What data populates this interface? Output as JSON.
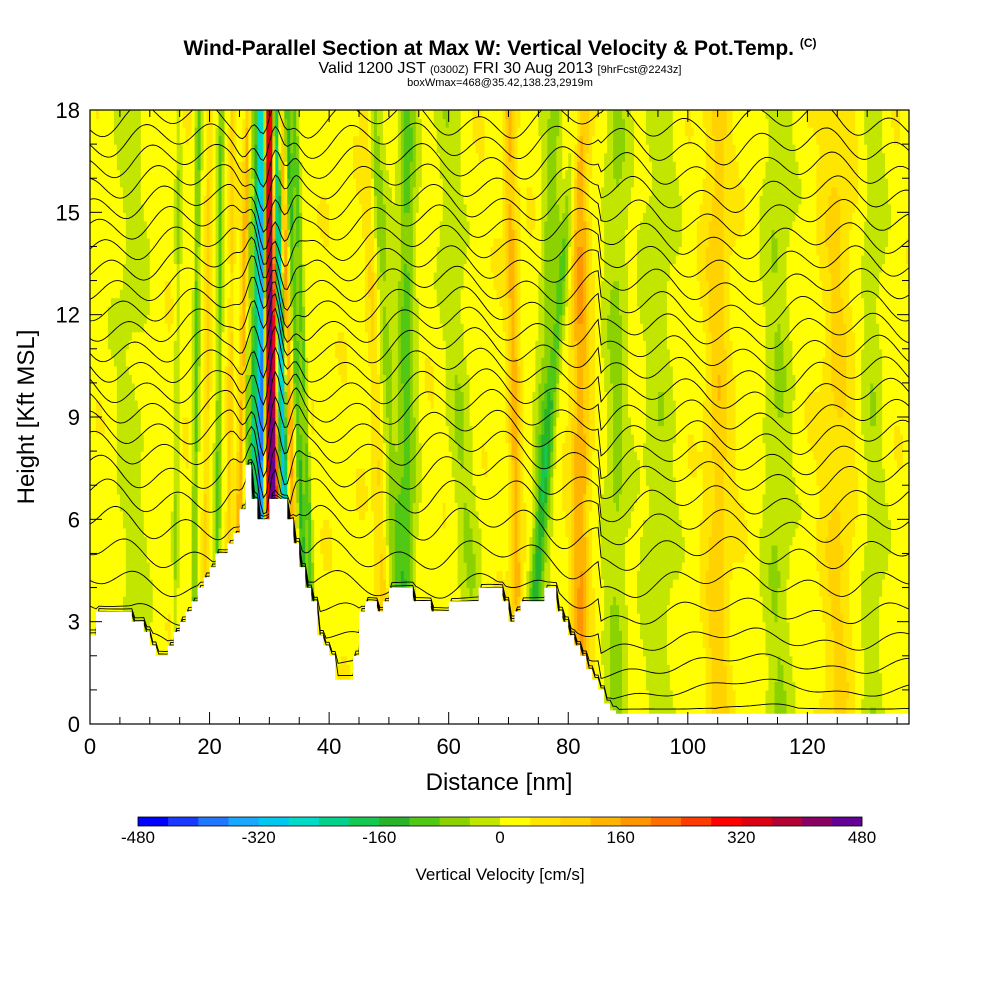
{
  "title": {
    "main": "Wind-Parallel Section at Max W: Vertical Velocity & Pot.Temp.",
    "main_tag": "(C)",
    "valid_prefix": "Valid 1200 JST ",
    "valid_utc": "(0300Z)",
    "valid_suffix": " FRI 30 Aug 2013 ",
    "forecast_tag": "[9hrFcst@2243z]",
    "box_info": "boxWmax=468@35.42,138.23,2919m"
  },
  "chart_data": {
    "type": "heatmap",
    "xlabel": "Distance [nm]",
    "ylabel": "Height [Kft MSL]",
    "xlim": [
      0,
      137
    ],
    "ylim": [
      0,
      18
    ],
    "x_ticks": [
      "0",
      "20",
      "40",
      "60",
      "80",
      "100",
      "120"
    ],
    "y_ticks": [
      "0",
      "3",
      "6",
      "9",
      "12",
      "15",
      "18"
    ],
    "colorbar": {
      "label": "Vertical Velocity [cm/s]",
      "range": [
        -480,
        480
      ],
      "tick_labels": [
        "-480",
        "-320",
        "-160",
        "0",
        "160",
        "320",
        "480"
      ],
      "colors": [
        "#0000ff",
        "#1a3bff",
        "#1f78ff",
        "#1aa8ff",
        "#00c8f0",
        "#00dcc8",
        "#00d28c",
        "#14c850",
        "#28b428",
        "#50c814",
        "#8cd200",
        "#c3e600",
        "#ffff00",
        "#ffe600",
        "#ffd200",
        "#ffb400",
        "#ff9600",
        "#ff6e00",
        "#ff3c00",
        "#ff0000",
        "#dc0014",
        "#b40032",
        "#8c0064",
        "#640096"
      ]
    },
    "terrain_nm_kft": [
      [
        0,
        2.6
      ],
      [
        1,
        3.3
      ],
      [
        6,
        3.3
      ],
      [
        7,
        3.0
      ],
      [
        9,
        2.7
      ],
      [
        10,
        2.3
      ],
      [
        11,
        2.0
      ],
      [
        13,
        2.3
      ],
      [
        14,
        2.7
      ],
      [
        15,
        3.0
      ],
      [
        16,
        3.3
      ],
      [
        17,
        3.6
      ],
      [
        18,
        4.0
      ],
      [
        19,
        4.3
      ],
      [
        20,
        4.6
      ],
      [
        21,
        5.0
      ],
      [
        22,
        5.0
      ],
      [
        23,
        5.3
      ],
      [
        24,
        5.6
      ],
      [
        25,
        6.3
      ],
      [
        26,
        7.6
      ],
      [
        27,
        6.6
      ],
      [
        28,
        6.0
      ],
      [
        29,
        6.0
      ],
      [
        30,
        6.6
      ],
      [
        31,
        6.6
      ],
      [
        32,
        6.6
      ],
      [
        33,
        6.0
      ],
      [
        34,
        5.3
      ],
      [
        35,
        4.6
      ],
      [
        36,
        4.0
      ],
      [
        37,
        3.6
      ],
      [
        38,
        2.6
      ],
      [
        39,
        2.3
      ],
      [
        40,
        2.0
      ],
      [
        41,
        1.3
      ],
      [
        43,
        1.3
      ],
      [
        44,
        2.0
      ],
      [
        45,
        3.3
      ],
      [
        46,
        3.6
      ],
      [
        47,
        3.6
      ],
      [
        48,
        3.3
      ],
      [
        49,
        3.6
      ],
      [
        50,
        4.0
      ],
      [
        53,
        4.0
      ],
      [
        54,
        3.6
      ],
      [
        56,
        3.6
      ],
      [
        57,
        3.3
      ],
      [
        59,
        3.3
      ],
      [
        60,
        3.6
      ],
      [
        64,
        3.6
      ],
      [
        65,
        4.0
      ],
      [
        68,
        4.0
      ],
      [
        69,
        3.6
      ],
      [
        70,
        3.0
      ],
      [
        71,
        3.3
      ],
      [
        72,
        3.6
      ],
      [
        75,
        3.6
      ],
      [
        76,
        4.0
      ],
      [
        77,
        4.0
      ],
      [
        78,
        3.3
      ],
      [
        79,
        3.0
      ],
      [
        80,
        2.6
      ],
      [
        81,
        2.3
      ],
      [
        82,
        2.0
      ],
      [
        83,
        1.6
      ],
      [
        84,
        1.3
      ],
      [
        85,
        1.0
      ],
      [
        86,
        0.6
      ],
      [
        87,
        0.4
      ],
      [
        88,
        0.3
      ],
      [
        137,
        0.3
      ]
    ],
    "w_features": [
      {
        "x": 30.3,
        "width": 1.0,
        "value": 460,
        "tilt": -0.06
      },
      {
        "x": 28.6,
        "width": 0.7,
        "value": -460,
        "tilt": 0.05
      },
      {
        "x": 32.1,
        "width": 0.7,
        "value": -350,
        "tilt": -0.12
      },
      {
        "x": 27.3,
        "width": 0.5,
        "value": -200,
        "tilt": 0.1
      },
      {
        "x": 33.4,
        "width": 0.6,
        "value": 150,
        "tilt": -0.18
      },
      {
        "x": 25.4,
        "width": 0.6,
        "value": 120,
        "tilt": 0.12
      },
      {
        "x": 26.2,
        "width": 0.4,
        "value": -100,
        "tilt": 0.1
      },
      {
        "x": 34.8,
        "width": 0.6,
        "value": -150,
        "tilt": -0.2
      },
      {
        "x": 36.0,
        "width": 0.5,
        "value": -120,
        "tilt": -0.2
      },
      {
        "x": 17.7,
        "width": 0.5,
        "value": -120,
        "tilt": 0.05
      },
      {
        "x": 21.5,
        "width": 0.5,
        "value": -110,
        "tilt": 0.05
      },
      {
        "x": 19.5,
        "width": 0.5,
        "value": 70,
        "tilt": 0.05
      },
      {
        "x": 23.5,
        "width": 0.5,
        "value": 70,
        "tilt": 0.05
      },
      {
        "x": 14.5,
        "width": 0.5,
        "value": -60,
        "tilt": 0.05
      },
      {
        "x": 50.0,
        "width": 1.5,
        "value": -80,
        "tilt": -0.3
      },
      {
        "x": 48.0,
        "width": 1.0,
        "value": 70,
        "tilt": -0.2
      },
      {
        "x": 53.0,
        "width": 1.5,
        "value": -120,
        "tilt": 0
      },
      {
        "x": 62.0,
        "width": 2.0,
        "value": -60,
        "tilt": -0.3
      },
      {
        "x": 71.0,
        "width": 1.0,
        "value": 110,
        "tilt": -0.1
      },
      {
        "x": 76.0,
        "width": 1.5,
        "value": -90,
        "tilt": 0.2
      },
      {
        "x": 82.0,
        "width": 1.5,
        "value": 130,
        "tilt": 0
      },
      {
        "x": 77.0,
        "width": 1.0,
        "value": -100,
        "tilt": 0.5
      },
      {
        "x": 95.0,
        "width": 3.0,
        "value": -50,
        "tilt": 0
      },
      {
        "x": 105.0,
        "width": 2.0,
        "value": 80,
        "tilt": 0
      },
      {
        "x": 115.0,
        "width": 2.5,
        "value": -60,
        "tilt": 0
      },
      {
        "x": 125.0,
        "width": 2.5,
        "value": 60,
        "tilt": 0
      },
      {
        "x": 131.0,
        "width": 2.0,
        "value": -50,
        "tilt": 0
      },
      {
        "x": 7.0,
        "width": 3.0,
        "value": -40,
        "tilt": 0
      },
      {
        "x": 88.0,
        "width": 2.0,
        "value": -70,
        "tilt": 0
      }
    ],
    "isentrope_levels_kft": [
      0.8,
      1.6,
      2.4,
      3.2,
      4.1,
      5.0,
      5.9,
      6.7,
      7.4,
      8.1,
      8.7,
      9.3,
      9.9,
      10.5,
      11.1,
      11.7,
      12.3,
      12.9,
      13.5,
      14.1,
      14.7,
      15.3,
      15.9,
      16.5,
      17.1,
      17.7
    ]
  }
}
